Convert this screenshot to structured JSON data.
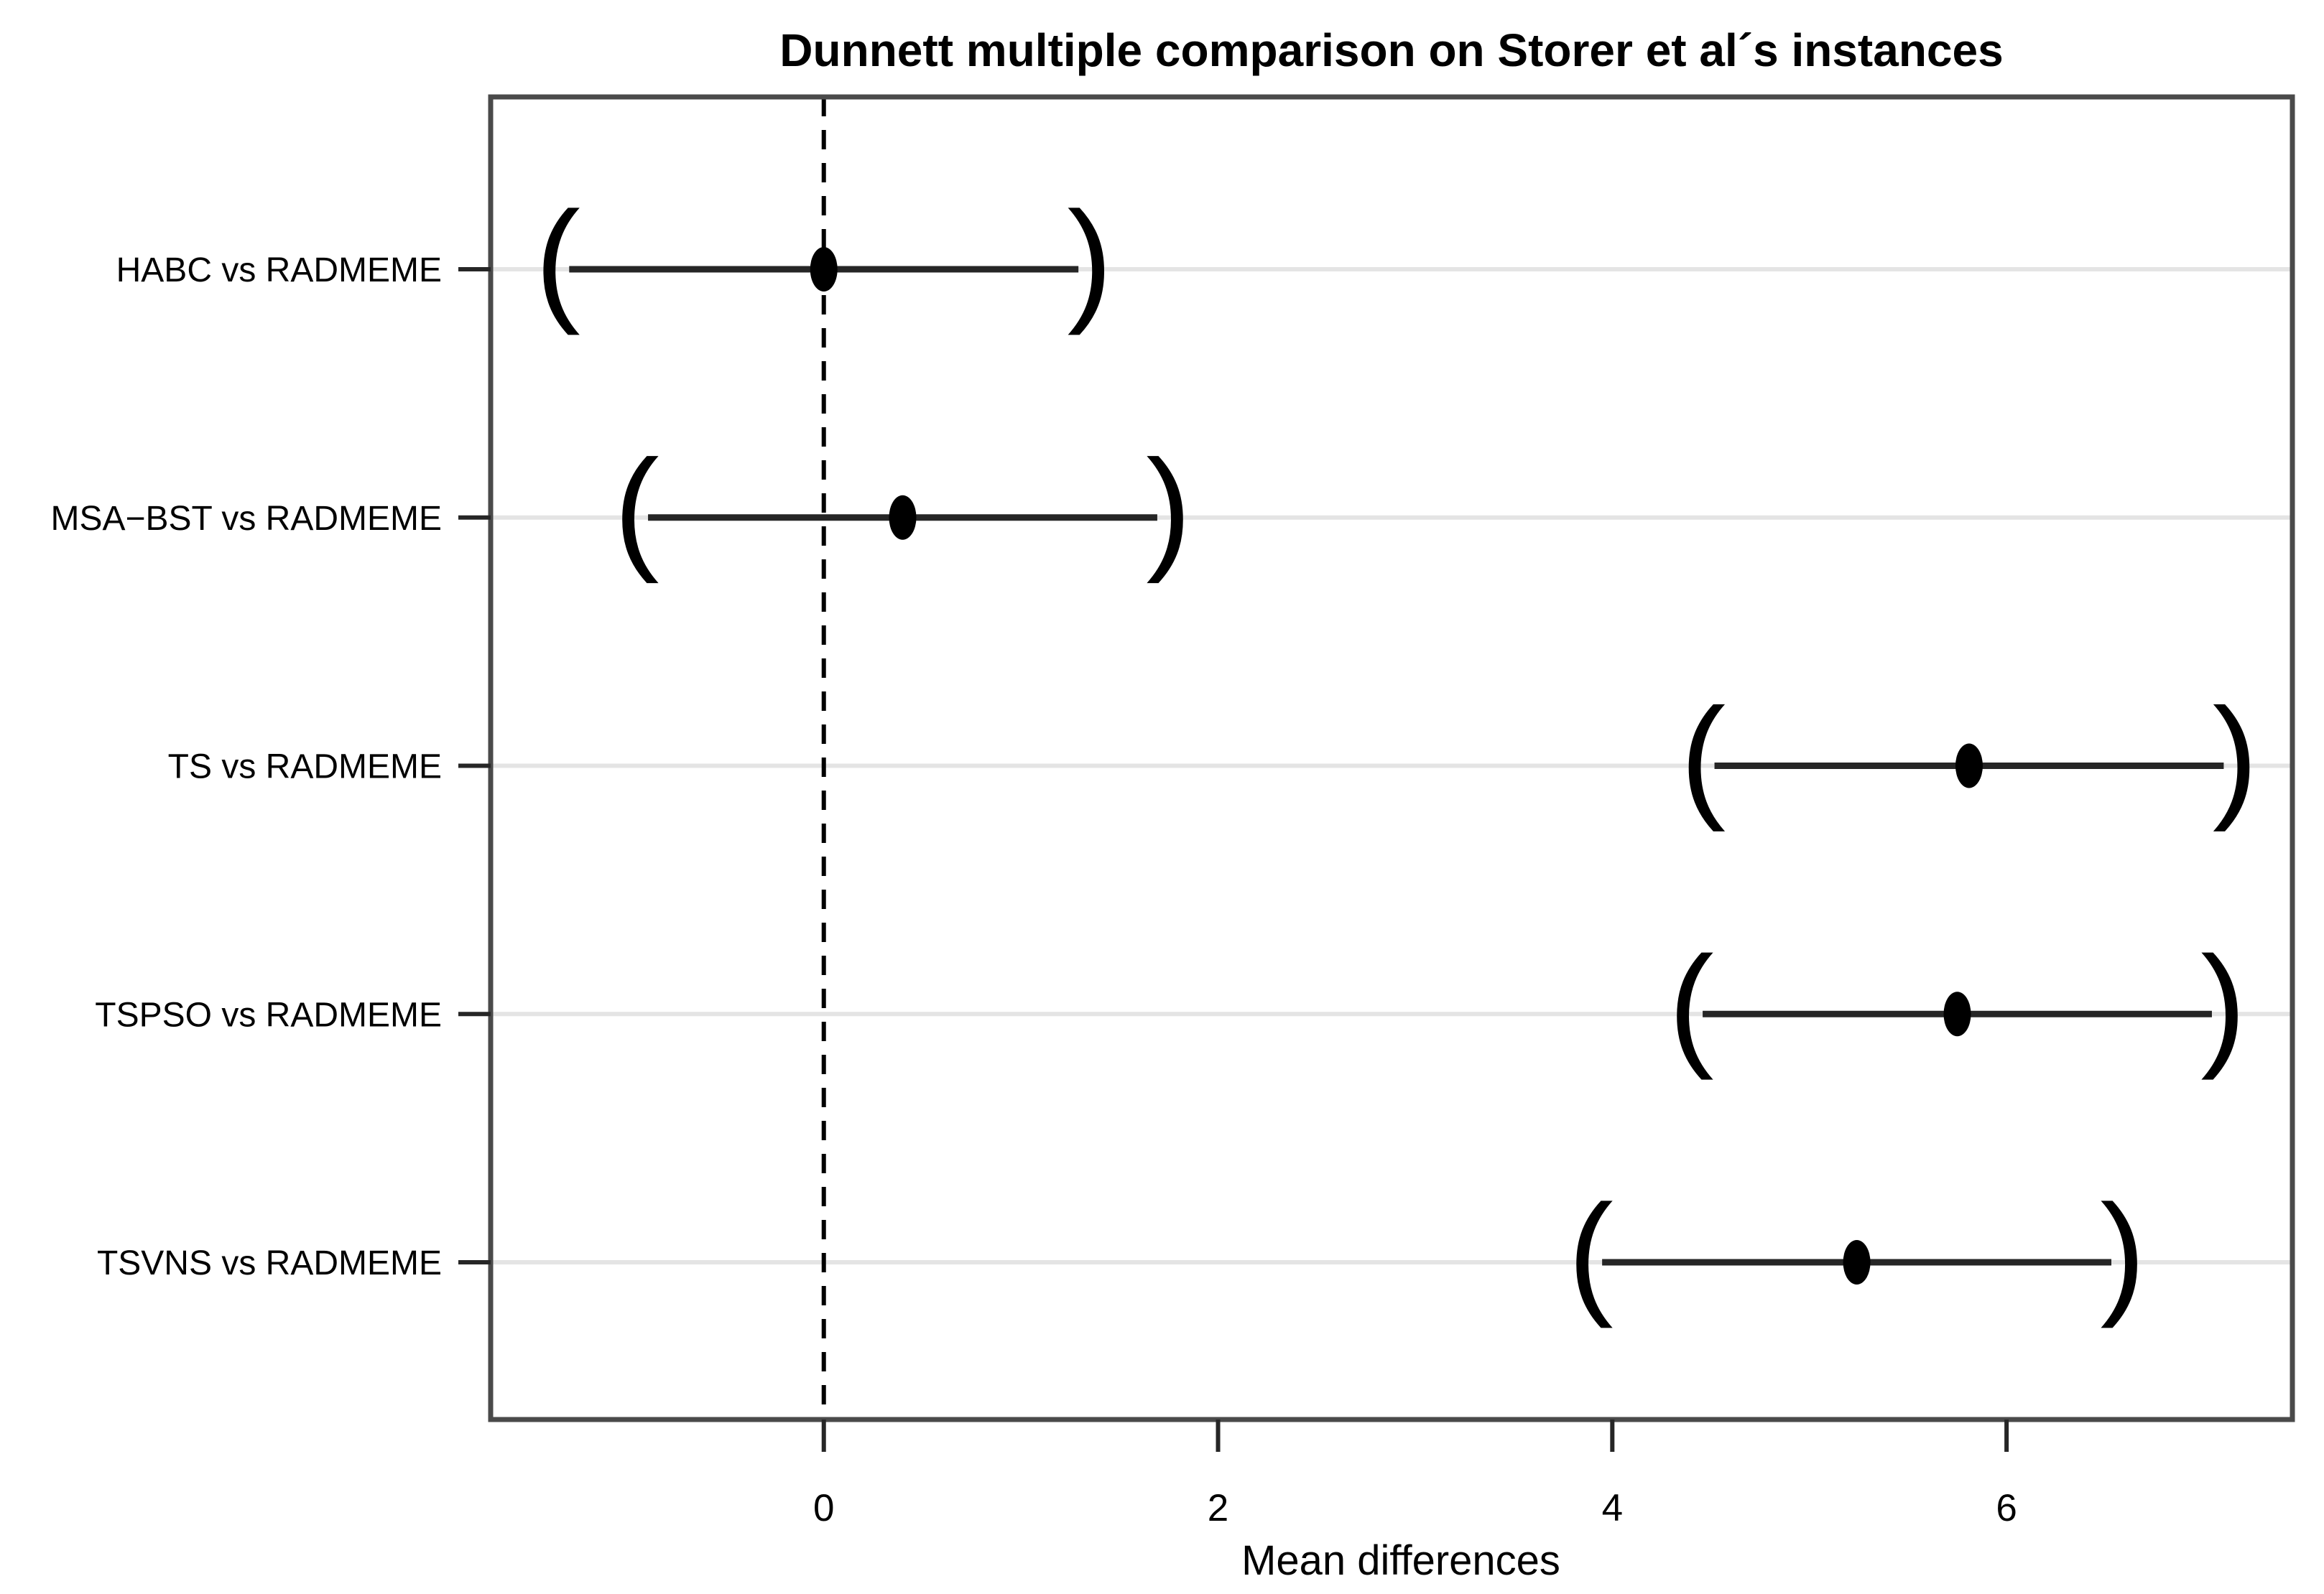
{
  "title": "Dunnett multiple comparison on Storer et al´s instances",
  "chart_data": {
    "type": "scatter",
    "subtype": "dunnett-confidence-interval-plot",
    "title": "Dunnett multiple comparison on Storer et al´s instances",
    "xlabel": "Mean differences",
    "ylabel": "",
    "xlim": [
      -1.69,
      7.45
    ],
    "xticks": [
      0,
      2,
      4,
      6
    ],
    "zero_reference_line_x": 0,
    "interval_style": "parentheses-endpoints",
    "grid": "light-grey-row-reference-lines",
    "legend_position": "none",
    "categories": [
      "HABC vs RADMEME",
      "MSA−BST vs RADMEME",
      "TS vs RADMEME",
      "TSPSO vs RADMEME",
      "TSVNS vs RADMEME"
    ],
    "series": [
      {
        "name": "HABC vs RADMEME",
        "estimate": 0.0,
        "lower": -1.35,
        "upper": 1.35
      },
      {
        "name": "MSA−BST vs RADMEME",
        "estimate": 0.4,
        "lower": -0.95,
        "upper": 1.75
      },
      {
        "name": "TS vs RADMEME",
        "estimate": 5.81,
        "lower": 4.46,
        "upper": 7.16
      },
      {
        "name": "TSPSO vs RADMEME",
        "estimate": 5.75,
        "lower": 4.4,
        "upper": 7.1
      },
      {
        "name": "TSVNS vs RADMEME",
        "estimate": 5.24,
        "lower": 3.89,
        "upper": 6.59
      }
    ],
    "paren_glyphs": {
      "lower": "(",
      "upper": ")"
    }
  },
  "colors": {
    "background": "#ffffff",
    "frame": "#4a4a4a",
    "interval_line": "#262626",
    "point": "#000000",
    "reference_dashed": "#000000",
    "row_line": "#e4e4e4",
    "tick": "#262626",
    "text": "#000000"
  }
}
